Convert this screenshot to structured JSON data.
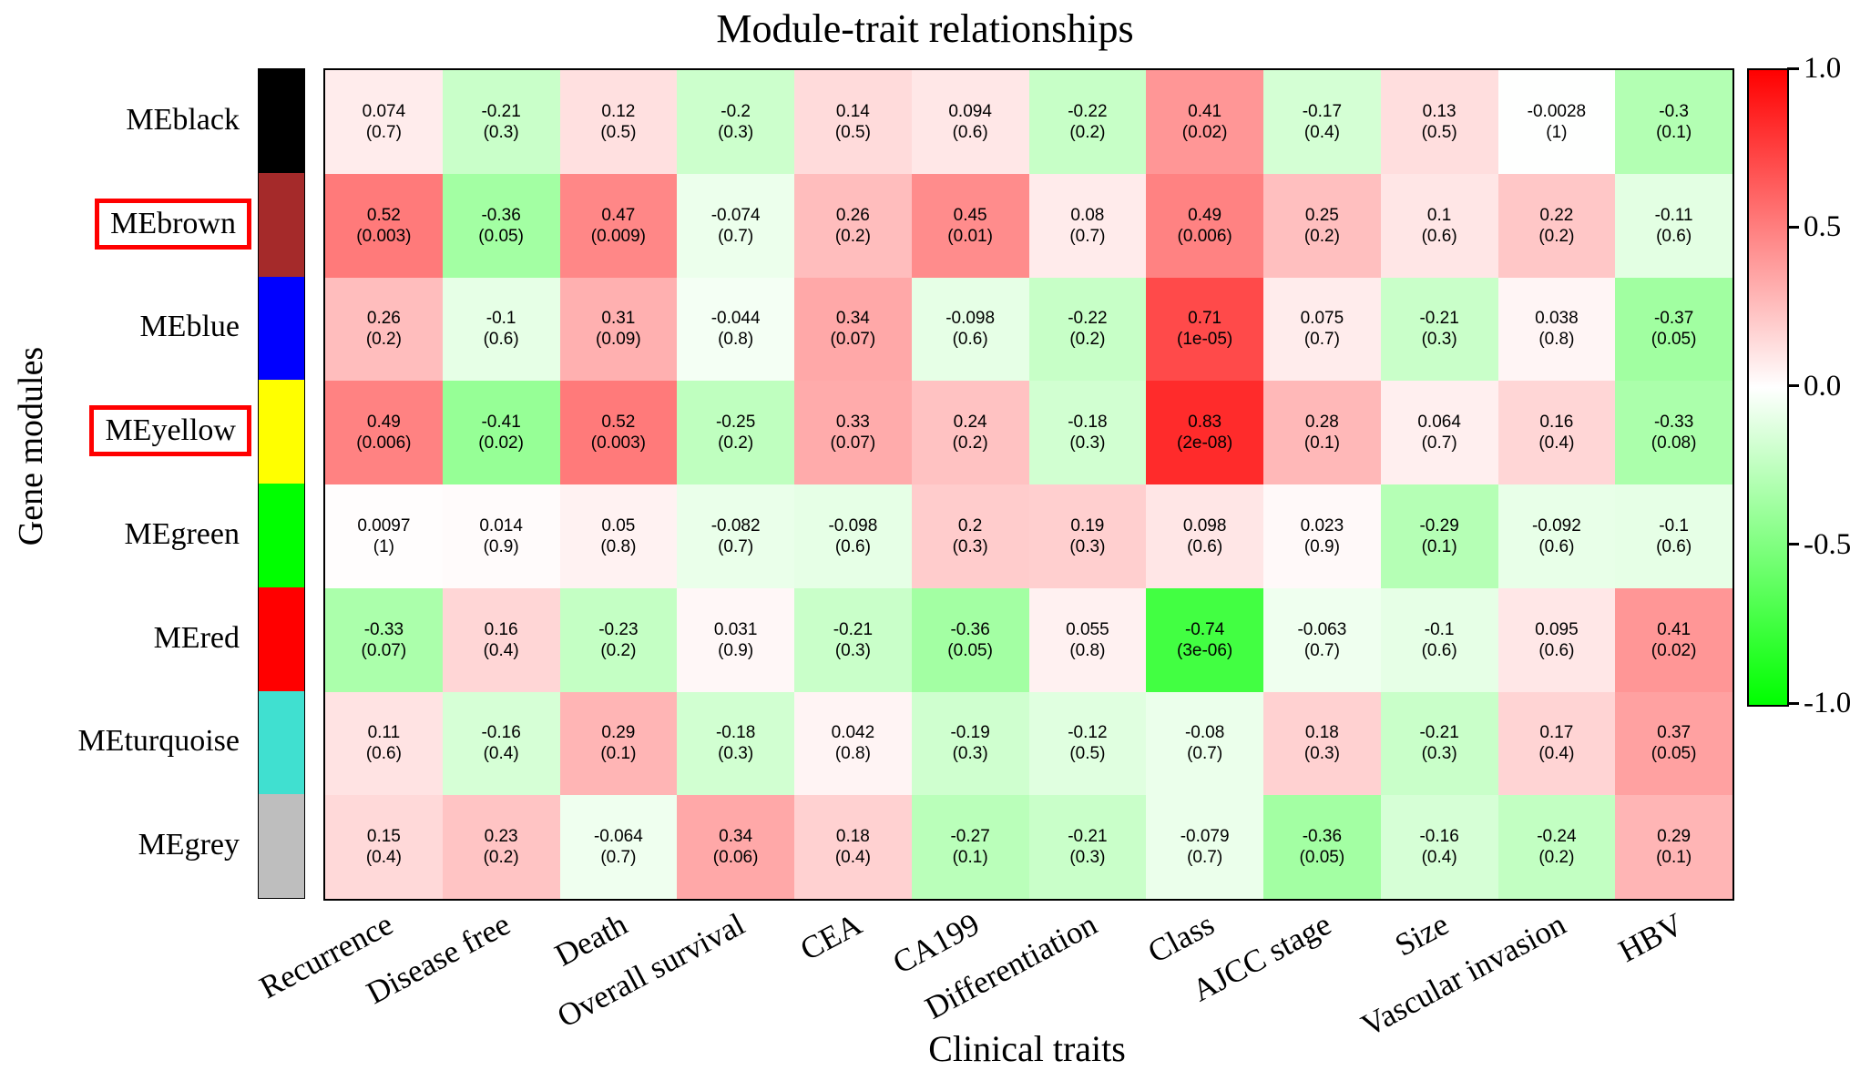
{
  "chart_data": {
    "type": "heatmap",
    "title": "Module-trait relationships",
    "xlabel": "Clinical traits",
    "ylabel": "Gene modules",
    "cell_format": "correlation (p-value)",
    "columns": [
      "Recurrence",
      "Disease free",
      "Death",
      "Overall survival",
      "CEA",
      "CA199",
      "Differentiation",
      "Class",
      "AJCC stage",
      "Size",
      "Vascular invasion",
      "HBV"
    ],
    "rows": [
      {
        "module": "MEblack",
        "color": "#000000",
        "highlighted": false,
        "cells": [
          {
            "cor": "0.074",
            "p": "(0.7)"
          },
          {
            "cor": "-0.21",
            "p": "(0.3)"
          },
          {
            "cor": "0.12",
            "p": "(0.5)"
          },
          {
            "cor": "-0.2",
            "p": "(0.3)"
          },
          {
            "cor": "0.14",
            "p": "(0.5)"
          },
          {
            "cor": "0.094",
            "p": "(0.6)"
          },
          {
            "cor": "-0.22",
            "p": "(0.2)"
          },
          {
            "cor": "0.41",
            "p": "(0.02)"
          },
          {
            "cor": "-0.17",
            "p": "(0.4)"
          },
          {
            "cor": "0.13",
            "p": "(0.5)"
          },
          {
            "cor": "-0.0028",
            "p": "(1)"
          },
          {
            "cor": "-0.3",
            "p": "(0.1)"
          }
        ]
      },
      {
        "module": "MEbrown",
        "color": "#A52A2A",
        "highlighted": true,
        "cells": [
          {
            "cor": "0.52",
            "p": "(0.003)"
          },
          {
            "cor": "-0.36",
            "p": "(0.05)"
          },
          {
            "cor": "0.47",
            "p": "(0.009)"
          },
          {
            "cor": "-0.074",
            "p": "(0.7)"
          },
          {
            "cor": "0.26",
            "p": "(0.2)"
          },
          {
            "cor": "0.45",
            "p": "(0.01)"
          },
          {
            "cor": "0.08",
            "p": "(0.7)"
          },
          {
            "cor": "0.49",
            "p": "(0.006)"
          },
          {
            "cor": "0.25",
            "p": "(0.2)"
          },
          {
            "cor": "0.1",
            "p": "(0.6)"
          },
          {
            "cor": "0.22",
            "p": "(0.2)"
          },
          {
            "cor": "-0.11",
            "p": "(0.6)"
          }
        ]
      },
      {
        "module": "MEblue",
        "color": "#0000FF",
        "highlighted": false,
        "cells": [
          {
            "cor": "0.26",
            "p": "(0.2)"
          },
          {
            "cor": "-0.1",
            "p": "(0.6)"
          },
          {
            "cor": "0.31",
            "p": "(0.09)"
          },
          {
            "cor": "-0.044",
            "p": "(0.8)"
          },
          {
            "cor": "0.34",
            "p": "(0.07)"
          },
          {
            "cor": "-0.098",
            "p": "(0.6)"
          },
          {
            "cor": "-0.22",
            "p": "(0.2)"
          },
          {
            "cor": "0.71",
            "p": "(1e-05)"
          },
          {
            "cor": "0.075",
            "p": "(0.7)"
          },
          {
            "cor": "-0.21",
            "p": "(0.3)"
          },
          {
            "cor": "0.038",
            "p": "(0.8)"
          },
          {
            "cor": "-0.37",
            "p": "(0.05)"
          }
        ]
      },
      {
        "module": "MEyellow",
        "color": "#FFFF00",
        "highlighted": true,
        "cells": [
          {
            "cor": "0.49",
            "p": "(0.006)"
          },
          {
            "cor": "-0.41",
            "p": "(0.02)"
          },
          {
            "cor": "0.52",
            "p": "(0.003)"
          },
          {
            "cor": "-0.25",
            "p": "(0.2)"
          },
          {
            "cor": "0.33",
            "p": "(0.07)"
          },
          {
            "cor": "0.24",
            "p": "(0.2)"
          },
          {
            "cor": "-0.18",
            "p": "(0.3)"
          },
          {
            "cor": "0.83",
            "p": "(2e-08)"
          },
          {
            "cor": "0.28",
            "p": "(0.1)"
          },
          {
            "cor": "0.064",
            "p": "(0.7)"
          },
          {
            "cor": "0.16",
            "p": "(0.4)"
          },
          {
            "cor": "-0.33",
            "p": "(0.08)"
          }
        ]
      },
      {
        "module": "MEgreen",
        "color": "#00FF00",
        "highlighted": false,
        "cells": [
          {
            "cor": "0.0097",
            "p": "(1)"
          },
          {
            "cor": "0.014",
            "p": "(0.9)"
          },
          {
            "cor": "0.05",
            "p": "(0.8)"
          },
          {
            "cor": "-0.082",
            "p": "(0.7)"
          },
          {
            "cor": "-0.098",
            "p": "(0.6)"
          },
          {
            "cor": "0.2",
            "p": "(0.3)"
          },
          {
            "cor": "0.19",
            "p": "(0.3)"
          },
          {
            "cor": "0.098",
            "p": "(0.6)"
          },
          {
            "cor": "0.023",
            "p": "(0.9)"
          },
          {
            "cor": "-0.29",
            "p": "(0.1)"
          },
          {
            "cor": "-0.092",
            "p": "(0.6)"
          },
          {
            "cor": "-0.1",
            "p": "(0.6)"
          }
        ]
      },
      {
        "module": "MEred",
        "color": "#FF0000",
        "highlighted": false,
        "cells": [
          {
            "cor": "-0.33",
            "p": "(0.07)"
          },
          {
            "cor": "0.16",
            "p": "(0.4)"
          },
          {
            "cor": "-0.23",
            "p": "(0.2)"
          },
          {
            "cor": "0.031",
            "p": "(0.9)"
          },
          {
            "cor": "-0.21",
            "p": "(0.3)"
          },
          {
            "cor": "-0.36",
            "p": "(0.05)"
          },
          {
            "cor": "0.055",
            "p": "(0.8)"
          },
          {
            "cor": "-0.74",
            "p": "(3e-06)"
          },
          {
            "cor": "-0.063",
            "p": "(0.7)"
          },
          {
            "cor": "-0.1",
            "p": "(0.6)"
          },
          {
            "cor": "0.095",
            "p": "(0.6)"
          },
          {
            "cor": "0.41",
            "p": "(0.02)"
          }
        ]
      },
      {
        "module": "MEturquoise",
        "color": "#40E0D0",
        "highlighted": false,
        "cells": [
          {
            "cor": "0.11",
            "p": "(0.6)"
          },
          {
            "cor": "-0.16",
            "p": "(0.4)"
          },
          {
            "cor": "0.29",
            "p": "(0.1)"
          },
          {
            "cor": "-0.18",
            "p": "(0.3)"
          },
          {
            "cor": "0.042",
            "p": "(0.8)"
          },
          {
            "cor": "-0.19",
            "p": "(0.3)"
          },
          {
            "cor": "-0.12",
            "p": "(0.5)"
          },
          {
            "cor": "-0.08",
            "p": "(0.7)"
          },
          {
            "cor": "0.18",
            "p": "(0.3)"
          },
          {
            "cor": "-0.21",
            "p": "(0.3)"
          },
          {
            "cor": "0.17",
            "p": "(0.4)"
          },
          {
            "cor": "0.37",
            "p": "(0.05)"
          }
        ]
      },
      {
        "module": "MEgrey",
        "color": "#BEBEBE",
        "highlighted": false,
        "cells": [
          {
            "cor": "0.15",
            "p": "(0.4)"
          },
          {
            "cor": "0.23",
            "p": "(0.2)"
          },
          {
            "cor": "-0.064",
            "p": "(0.7)"
          },
          {
            "cor": "0.34",
            "p": "(0.06)"
          },
          {
            "cor": "0.18",
            "p": "(0.4)"
          },
          {
            "cor": "-0.27",
            "p": "(0.1)"
          },
          {
            "cor": "-0.21",
            "p": "(0.3)"
          },
          {
            "cor": "-0.079",
            "p": "(0.7)"
          },
          {
            "cor": "-0.36",
            "p": "(0.05)"
          },
          {
            "cor": "-0.16",
            "p": "(0.4)"
          },
          {
            "cor": "-0.24",
            "p": "(0.2)"
          },
          {
            "cor": "0.29",
            "p": "(0.1)"
          }
        ]
      }
    ],
    "colorbar": {
      "ticks": [
        "1.0",
        "0.5",
        "0.0",
        "-0.5",
        "-1.0"
      ],
      "max": 1,
      "min": -1,
      "position": "right"
    },
    "color_scale": {
      "max_color": "#FF0000",
      "mid_color": "#FFFFFF",
      "min_color": "#00FF00"
    },
    "highlight_box_color": "#FF0000",
    "highlighted_modules": [
      "MEbrown",
      "MEyellow"
    ],
    "grid": false
  }
}
